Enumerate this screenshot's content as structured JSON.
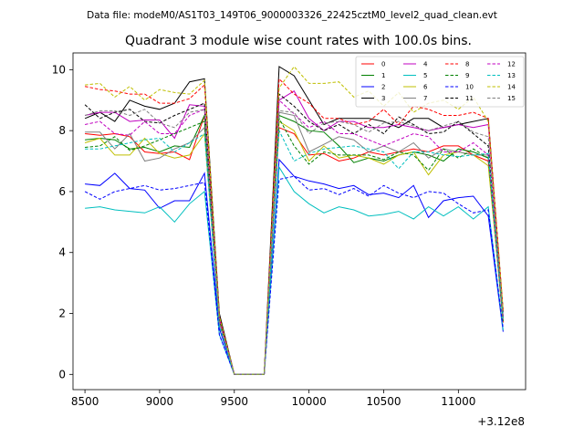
{
  "chart_data": {
    "type": "line",
    "suptitle": "Data file: modeM0/AS1T03_149T06_9000003326_22425cztM0_level2_quad_clean.evt",
    "title": "Quadrant 3 module wise count rates with 100.0s bins.",
    "xlabel": "",
    "ylabel": "",
    "x_offset_label": "+3.12e8",
    "xlim": [
      8420,
      11450
    ],
    "ylim": [
      -0.5,
      10.55
    ],
    "x_ticks": [
      8500,
      9000,
      9500,
      10000,
      10500,
      11000
    ],
    "y_ticks": [
      0,
      2,
      4,
      6,
      8,
      10
    ],
    "legend_position": "top-right",
    "x": [
      8500,
      8600,
      8700,
      8800,
      8900,
      9000,
      9100,
      9200,
      9300,
      9400,
      9500,
      9600,
      9700,
      9800,
      9900,
      10000,
      10100,
      10200,
      10300,
      10400,
      10500,
      10600,
      10700,
      10800,
      10900,
      11000,
      11100,
      11200,
      11300
    ],
    "series": [
      {
        "name": "0",
        "color": "#ff0000",
        "style": "solid",
        "values": [
          7.9,
          7.85,
          7.9,
          7.8,
          7.3,
          7.25,
          7.3,
          7.05,
          8.5,
          1.7,
          0,
          0,
          0,
          8.1,
          7.9,
          7.2,
          7.25,
          7.0,
          7.1,
          7.3,
          7.2,
          7.3,
          7.4,
          7.3,
          7.5,
          7.5,
          7.2,
          7.0,
          1.7
        ]
      },
      {
        "name": "1",
        "color": "#008000",
        "style": "solid",
        "values": [
          7.7,
          7.75,
          7.7,
          7.4,
          7.45,
          7.3,
          7.5,
          7.45,
          8.5,
          1.7,
          0,
          0,
          0,
          8.5,
          8.3,
          8.0,
          7.95,
          7.5,
          6.95,
          7.1,
          7.0,
          7.2,
          7.3,
          7.2,
          7.0,
          7.4,
          7.3,
          7.1,
          1.75
        ]
      },
      {
        "name": "2",
        "color": "#0000ff",
        "style": "solid",
        "values": [
          6.25,
          6.2,
          6.6,
          6.1,
          6.05,
          5.45,
          5.7,
          5.7,
          6.6,
          1.5,
          0,
          0,
          0,
          7.05,
          6.5,
          6.35,
          6.25,
          6.1,
          6.2,
          5.9,
          5.95,
          5.8,
          6.2,
          5.15,
          5.7,
          5.8,
          5.85,
          5.2,
          1.4
        ]
      },
      {
        "name": "3",
        "color": "#000000",
        "style": "solid",
        "values": [
          8.4,
          8.6,
          8.3,
          9.0,
          8.8,
          8.7,
          8.9,
          9.6,
          9.7,
          2.0,
          0,
          0,
          0,
          10.1,
          9.8,
          9.0,
          8.2,
          8.4,
          8.4,
          8.4,
          8.3,
          8.1,
          8.4,
          8.4,
          8.1,
          8.2,
          8.3,
          8.4,
          2.05
        ]
      },
      {
        "name": "4",
        "color": "#c000c0",
        "style": "solid",
        "values": [
          8.5,
          8.6,
          8.6,
          8.3,
          8.35,
          8.35,
          7.75,
          8.85,
          8.8,
          1.8,
          0,
          0,
          0,
          9.0,
          9.3,
          8.4,
          8.0,
          8.3,
          8.3,
          8.1,
          8.1,
          8.2,
          8.1,
          8.0,
          8.1,
          8.2,
          8.1,
          8.2,
          1.9
        ]
      },
      {
        "name": "5",
        "color": "#00bfbf",
        "style": "solid",
        "values": [
          5.45,
          5.5,
          5.4,
          5.35,
          5.3,
          5.5,
          5.0,
          5.6,
          6.0,
          1.3,
          0,
          0,
          0,
          6.8,
          6.0,
          5.6,
          5.3,
          5.5,
          5.4,
          5.2,
          5.25,
          5.35,
          5.1,
          5.5,
          5.2,
          5.5,
          5.1,
          5.5,
          1.45
        ]
      },
      {
        "name": "6",
        "color": "#bfbf00",
        "style": "solid",
        "values": [
          7.6,
          7.75,
          7.2,
          7.2,
          7.75,
          7.25,
          7.1,
          7.2,
          7.9,
          1.7,
          0,
          0,
          0,
          8.3,
          8.0,
          7.0,
          7.5,
          7.1,
          7.2,
          7.1,
          6.9,
          7.2,
          7.3,
          6.55,
          7.2,
          7.3,
          7.2,
          6.85,
          1.85
        ]
      },
      {
        "name": "7",
        "color": "#808080",
        "style": "solid",
        "values": [
          7.95,
          7.95,
          7.4,
          7.9,
          7.0,
          7.1,
          7.4,
          7.6,
          8.1,
          1.7,
          0,
          0,
          0,
          8.6,
          8.5,
          7.3,
          7.55,
          7.8,
          7.7,
          7.3,
          7.5,
          7.3,
          7.6,
          7.1,
          7.4,
          7.3,
          7.2,
          7.2,
          1.8
        ]
      },
      {
        "name": "8",
        "color": "#ff0000",
        "style": "dashed",
        "values": [
          9.45,
          9.35,
          9.3,
          9.2,
          9.2,
          8.9,
          8.9,
          9.05,
          9.5,
          1.9,
          0,
          0,
          0,
          9.7,
          9.2,
          8.9,
          8.4,
          8.4,
          8.2,
          8.3,
          8.7,
          8.2,
          8.8,
          8.7,
          8.5,
          8.5,
          8.6,
          8.4,
          2.1
        ]
      },
      {
        "name": "9",
        "color": "#008000",
        "style": "dashed",
        "values": [
          7.45,
          7.5,
          7.8,
          7.35,
          7.5,
          7.7,
          7.9,
          8.1,
          8.3,
          1.8,
          0,
          0,
          0,
          8.4,
          7.5,
          6.9,
          7.3,
          7.2,
          7.2,
          7.2,
          7.05,
          7.3,
          7.2,
          6.7,
          7.4,
          7.1,
          7.4,
          7.1,
          1.8
        ]
      },
      {
        "name": "10",
        "color": "#0000ff",
        "style": "dashed",
        "values": [
          6.0,
          5.75,
          6.0,
          6.1,
          6.2,
          6.05,
          6.1,
          6.2,
          6.3,
          1.3,
          0,
          0,
          0,
          6.4,
          6.5,
          6.05,
          6.1,
          5.9,
          6.1,
          5.85,
          6.2,
          5.95,
          5.8,
          6.0,
          5.95,
          5.6,
          5.3,
          5.4,
          1.5
        ]
      },
      {
        "name": "11",
        "color": "#000000",
        "style": "dashed",
        "values": [
          8.85,
          8.4,
          8.6,
          8.7,
          8.3,
          8.25,
          8.5,
          8.7,
          8.9,
          1.8,
          0,
          0,
          0,
          9.2,
          8.8,
          8.3,
          8.0,
          8.2,
          7.9,
          8.2,
          7.9,
          8.45,
          8.2,
          7.9,
          7.95,
          8.3,
          7.9,
          7.5,
          1.9
        ]
      },
      {
        "name": "12",
        "color": "#c000c0",
        "style": "dashed",
        "values": [
          8.2,
          8.3,
          7.9,
          7.85,
          8.3,
          7.9,
          7.9,
          8.5,
          8.7,
          1.8,
          0,
          0,
          0,
          9.0,
          8.55,
          8.1,
          8.3,
          7.9,
          7.9,
          7.7,
          7.5,
          7.7,
          7.9,
          7.8,
          7.3,
          7.3,
          7.6,
          7.2,
          1.9
        ]
      },
      {
        "name": "13",
        "color": "#00bfbf",
        "style": "dashed",
        "values": [
          7.4,
          7.4,
          7.5,
          7.6,
          7.7,
          7.75,
          7.3,
          7.6,
          7.9,
          1.6,
          0,
          0,
          0,
          8.0,
          7.0,
          7.25,
          7.4,
          7.45,
          7.5,
          7.4,
          7.3,
          6.75,
          7.3,
          7.3,
          7.2,
          7.15,
          7.2,
          7.25,
          1.85
        ]
      },
      {
        "name": "14",
        "color": "#bfbf00",
        "style": "dashed",
        "values": [
          9.5,
          9.55,
          9.1,
          9.45,
          9.0,
          9.35,
          9.25,
          9.2,
          9.65,
          1.9,
          0,
          0,
          0,
          9.4,
          10.1,
          9.55,
          9.55,
          9.6,
          9.1,
          9.3,
          8.8,
          9.25,
          8.6,
          8.9,
          9.0,
          8.7,
          9.1,
          8.3,
          2.1
        ]
      },
      {
        "name": "15",
        "color": "#808080",
        "style": "dashed",
        "values": [
          8.5,
          8.65,
          8.65,
          8.5,
          8.7,
          8.25,
          8.1,
          8.6,
          8.7,
          1.7,
          0,
          0,
          0,
          8.65,
          8.6,
          7.9,
          8.25,
          8.3,
          8.2,
          7.95,
          8.25,
          8.3,
          8.15,
          8.0,
          8.15,
          8.3,
          7.95,
          7.8,
          1.85
        ]
      }
    ]
  }
}
